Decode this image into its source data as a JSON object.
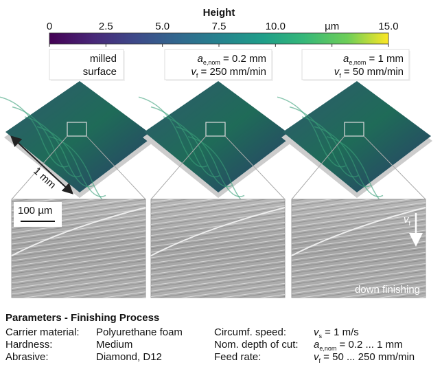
{
  "colorbar": {
    "title": "Height",
    "lim": [
      0,
      15
    ],
    "ticks": [
      0,
      {
        "value": 2.5,
        "label": "2.5"
      },
      {
        "value": 5,
        "label": "5.0"
      },
      {
        "value": 7.5,
        "label": "7.5"
      },
      {
        "value": 10,
        "label": "10.0"
      },
      {
        "value": 12.5,
        "label": "µm"
      },
      {
        "value": 15,
        "label": "15.0"
      }
    ]
  },
  "panels": [
    {
      "label_lines": [
        "milled",
        "surface"
      ]
    },
    {
      "a": {
        "var": "a",
        "sub": "e,nom",
        "rest": " = 0.2 mm"
      },
      "v": {
        "var": "v",
        "sub": "f",
        "rest": " = 250 mm/min"
      }
    },
    {
      "a": {
        "var": "a",
        "sub": "e,nom",
        "rest": " = 1 mm"
      },
      "v": {
        "var": "v",
        "sub": "f",
        "rest": " = 50 mm/min"
      }
    }
  ],
  "annotations": {
    "length": "1 mm",
    "scale_bar": "100 µm",
    "feed_var": "v",
    "feed_sub": "f",
    "mode": "down finishing"
  },
  "parameters": {
    "title": "Parameters - Finishing Process",
    "left": [
      [
        "Carrier material:",
        "Polyurethane foam"
      ],
      [
        "Hardness:",
        "Medium"
      ],
      [
        "Abrasive:",
        "Diamond, D12"
      ]
    ],
    "right": [
      {
        "label": "Circumf. speed:",
        "var": "v",
        "sub": "s",
        "rest": " = 1 m/s"
      },
      {
        "label": "Nom. depth of cut:",
        "var": "a",
        "sub": "e,nom",
        "rest": " = 0.2 ... 1 mm"
      },
      {
        "label": "Feed rate:",
        "var": "v",
        "sub": "f",
        "rest": " = 50 ... 250 mm/min"
      }
    ]
  }
}
